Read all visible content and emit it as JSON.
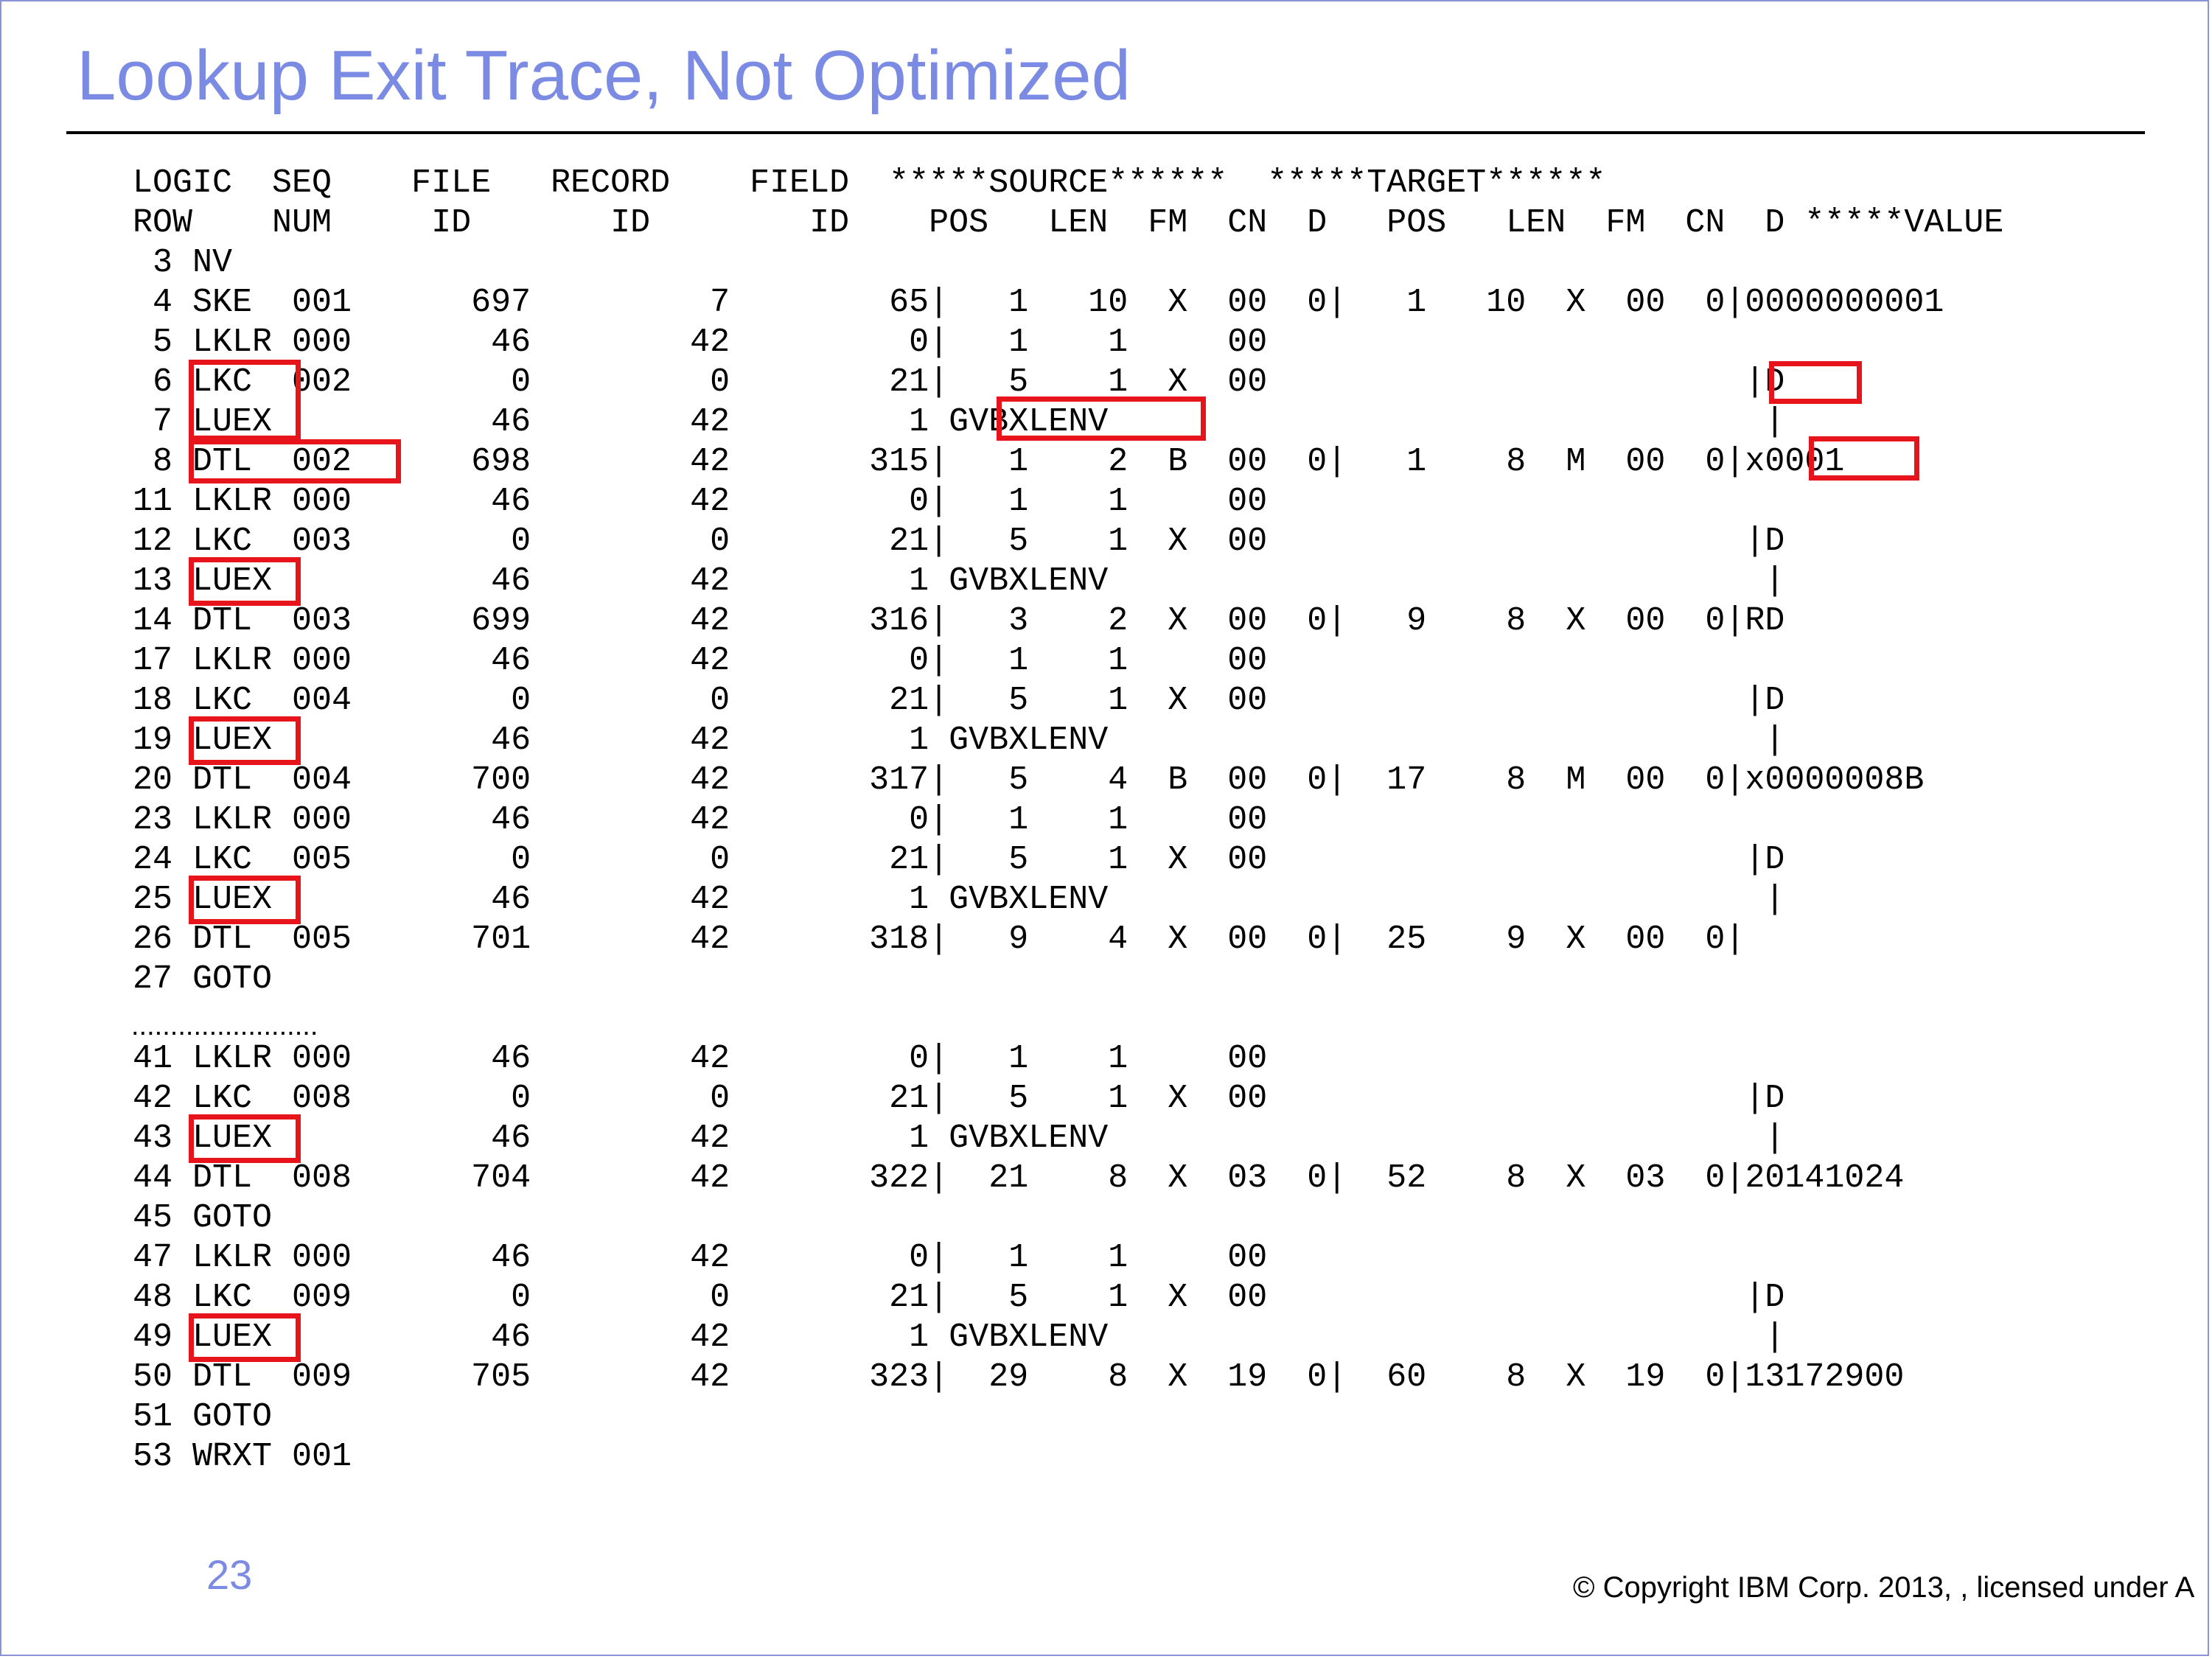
{
  "title": "Lookup Exit Trace, Not Optimized",
  "trace": {
    "header_lines": [
      "LOGIC  SEQ    FILE   RECORD    FIELD  *****SOURCE******  *****TARGET******",
      "ROW    NUM     ID       ID        ID    POS   LEN  FM  CN  D   POS   LEN  FM  CN  D *****VALUE"
    ],
    "rows_part1": [
      " 3 NV",
      " 4 SKE  001      697         7        65|   1   10  X  00  0|   1   10  X  00  0|0000000001",
      " 5 LKLR 000       46        42         0|   1    1     00",
      " 6 LKC  002        0         0        21|   5    1  X  00                        |D",
      " 7 LUEX           46        42         1 GVBXLENV                                 |",
      " 8 DTL  002      698        42       315|   1    2  B  00  0|   1    8  M  00  0|x0001",
      "11 LKLR 000       46        42         0|   1    1     00",
      "12 LKC  003        0         0        21|   5    1  X  00                        |D",
      "13 LUEX           46        42         1 GVBXLENV                                 |",
      "14 DTL  003      699        42       316|   3    2  X  00  0|   9    8  X  00  0|RD",
      "17 LKLR 000       46        42         0|   1    1     00",
      "18 LKC  004        0         0        21|   5    1  X  00                        |D",
      "19 LUEX           46        42         1 GVBXLENV                                 |",
      "20 DTL  004      700        42       317|   5    4  B  00  0|  17    8  M  00  0|x0000008B",
      "23 LKLR 000       46        42         0|   1    1     00",
      "24 LKC  005        0         0        21|   5    1  X  00                        |D",
      "25 LUEX           46        42         1 GVBXLENV                                 |",
      "26 DTL  005      701        42       318|   9    4  X  00  0|  25    9  X  00  0|",
      "27 GOTO"
    ],
    "ellipsis": "........................",
    "rows_part2": [
      "41 LKLR 000       46        42         0|   1    1     00",
      "42 LKC  008        0         0        21|   5    1  X  00                        |D",
      "43 LUEX           46        42         1 GVBXLENV                                 |",
      "44 DTL  008      704        42       322|  21    8  X  03  0|  52    8  X  03  0|20141024",
      "45 GOTO",
      "47 LKLR 000       46        42         0|   1    1     00",
      "48 LKC  009        0         0        21|   5    1  X  00                        |D",
      "49 LUEX           46        42         1 GVBXLENV                                 |",
      "50 DTL  009      705        42       323|  29    8  X  19  0|  60    8  X  19  0|13172900",
      "51 GOTO",
      "53 WRXT 001"
    ]
  },
  "footer": {
    "page_number": "23",
    "copyright": "© Copyright IBM Corp. 2013, , licensed under A"
  },
  "colors": {
    "title": "#7b8be4",
    "highlight_box": "#e8141b",
    "rule": "#000000"
  }
}
